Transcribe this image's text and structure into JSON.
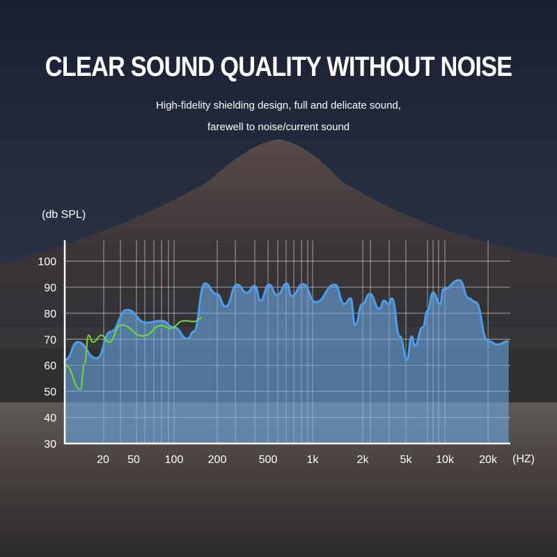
{
  "header": {
    "title": "CLEAR SOUND QUALITY WITHOUT NOISE",
    "subtitle_line1": "High-fidelity shielding design, full and delicate sound,",
    "subtitle_line2": "farewell to noise/current sound"
  },
  "colors": {
    "sky": "#1b2233",
    "fill": "#6fb0f0",
    "blue_line": "#4a9ff0",
    "green_line": "#6fdc3a",
    "grid": "#ffffff"
  },
  "chart_data": {
    "type": "area",
    "ylabel": "(db SPL)",
    "xlabel": "(HZ)",
    "x_scale": "log",
    "ylim": [
      30,
      100
    ],
    "xlim": [
      10,
      28000
    ],
    "yticks": [
      30,
      40,
      50,
      60,
      70,
      80,
      90,
      100
    ],
    "xticks": [
      {
        "label": "20",
        "value": 20
      },
      {
        "label": "50",
        "value": 50
      },
      {
        "label": "100",
        "value": 100
      },
      {
        "label": "200",
        "value": 200
      },
      {
        "label": "500",
        "value": 500
      },
      {
        "label": "1k",
        "value": 1000
      },
      {
        "label": "2k",
        "value": 2000
      },
      {
        "label": "5k",
        "value": 5000
      },
      {
        "label": "10k",
        "value": 10000
      },
      {
        "label": "20k",
        "value": 20000
      }
    ],
    "grid": true,
    "series": [
      {
        "style": "filled-area",
        "x": [
          10,
          12.5,
          17.8,
          25,
          41,
          62,
          81,
          100,
          124,
          137,
          164,
          198,
          233,
          286,
          340,
          393,
          437,
          507,
          575,
          670,
          722,
          860,
          1045,
          1360,
          1550,
          1690,
          1800,
          1990,
          2320,
          2850,
          3150,
          3480,
          3700,
          4400,
          5090,
          5540,
          5850,
          6740,
          7330,
          8100,
          9200,
          9700,
          12600,
          14700,
          16300,
          20000,
          23300,
          27900
        ],
        "y": [
          62.2,
          68.9,
          62.7,
          72.9,
          81.3,
          76.4,
          77.1,
          74.6,
          70.2,
          72.9,
          91.4,
          87.4,
          82.6,
          91,
          87.9,
          90.5,
          84.8,
          91,
          87,
          91.4,
          86.6,
          91.2,
          84.3,
          91,
          83.5,
          85.7,
          75.5,
          83.5,
          87.4,
          81.7,
          84.8,
          83.5,
          85.7,
          71.1,
          62.2,
          71.1,
          67.6,
          74.6,
          80.8,
          87.9,
          83.5,
          89.2,
          92.7,
          85.7,
          84.3,
          69.3,
          68,
          69.3
        ]
      },
      {
        "style": "line",
        "x": [
          10,
          13.2,
          14.2,
          15.3,
          16.6,
          19.4,
          24,
          34,
          59,
          81,
          93,
          118,
          137,
          156
        ],
        "y": [
          60,
          50.7,
          60.5,
          71.5,
          68.9,
          71.5,
          68.9,
          75.5,
          71.3,
          75.3,
          74.2,
          77.1,
          76.8,
          78.2
        ]
      }
    ]
  }
}
